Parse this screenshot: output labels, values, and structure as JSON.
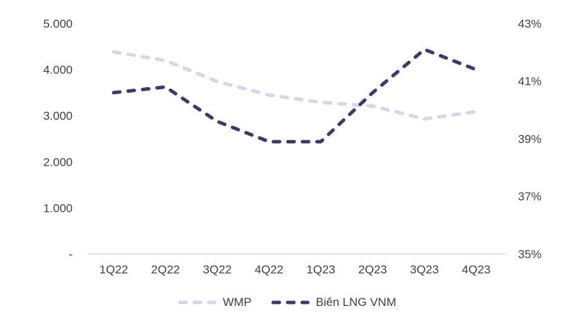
{
  "chart_data": {
    "type": "line",
    "title": "",
    "categories": [
      "1Q22",
      "2Q22",
      "3Q22",
      "4Q22",
      "1Q23",
      "2Q23",
      "3Q23",
      "4Q23"
    ],
    "series": [
      {
        "name": "WMP",
        "axis": "left",
        "color": "#dad3ea",
        "line_style": "dashed",
        "values": [
          4385,
          4200,
          3740,
          3450,
          3290,
          3210,
          2930,
          3090
        ]
      },
      {
        "name": "Biên LNG VNM",
        "axis": "right",
        "color": "#463667",
        "line_style": "dashed",
        "values": [
          40.6,
          40.8,
          39.6,
          38.9,
          38.9,
          40.6,
          42.1,
          41.4
        ]
      }
    ],
    "left_axis": {
      "range": [
        0,
        5000
      ],
      "ticks": [
        {
          "value": 0,
          "label": "-"
        },
        {
          "value": 1000,
          "label": "1.000"
        },
        {
          "value": 2000,
          "label": "2.000"
        },
        {
          "value": 3000,
          "label": "3.000"
        },
        {
          "value": 4000,
          "label": "4.000"
        },
        {
          "value": 5000,
          "label": "5.000"
        }
      ]
    },
    "right_axis": {
      "range": [
        35,
        43
      ],
      "ticks": [
        {
          "value": 35,
          "label": "35%"
        },
        {
          "value": 37,
          "label": "37%"
        },
        {
          "value": 39,
          "label": "39%"
        },
        {
          "value": 41,
          "label": "41%"
        },
        {
          "value": 43,
          "label": "43%"
        }
      ]
    },
    "grid": false,
    "legend_position": "bottom"
  },
  "styles": {
    "background": "#ffffff",
    "axis_line_color": "#d9d9d9",
    "label_color": "#404040"
  }
}
